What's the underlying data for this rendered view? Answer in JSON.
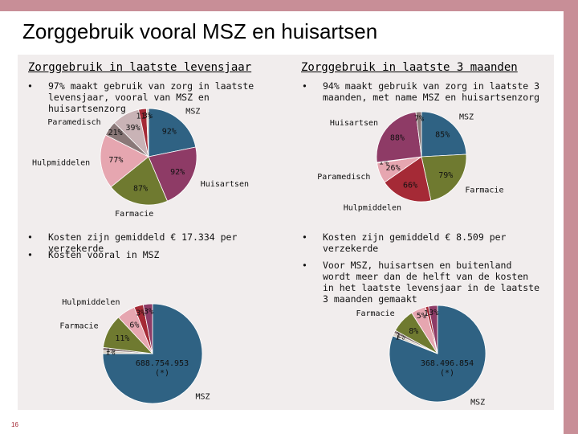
{
  "title": "Zorggebruik vooral MSZ en huisartsen",
  "page_number": "16",
  "columns": [
    {
      "heading": "Zorggebruik in laatste levensjaar",
      "bullets": [
        "97% maakt gebruik van zorg in laatste levensjaar, vooral van MSZ en huisartsenzorg"
      ],
      "cost_bullets": [
        "Kosten zijn gemiddeld € 17.334 per verzekerde",
        "Kosten vooral in MSZ"
      ]
    },
    {
      "heading": "Zorggebruik in laatste 3 maanden",
      "bullets": [
        "94% maakt gebruik van zorg in laatste 3 maanden, met name MSZ en huisartsenzorg"
      ],
      "cost_bullets": [
        "Kosten zijn gemiddeld € 8.509 per verzekerde",
        "Voor MSZ, huisartsen en buitenland wordt meer dan de helft van de kosten in het laatste levensjaar in de laatste 3 maanden gemaakt"
      ]
    }
  ],
  "chart_data": [
    {
      "type": "pie",
      "categories": [
        "MSZ",
        "Huisartsen",
        "Farmacie",
        "Hulpmiddelen",
        "Paramedisch",
        null,
        null,
        null
      ],
      "values": [
        92,
        92,
        87,
        77,
        21,
        39,
        11,
        3
      ],
      "value_labels": [
        "92%",
        "92%",
        "87%",
        "77%",
        "21%",
        "39%",
        "11%",
        "3%"
      ],
      "colors": [
        "#2f6283",
        "#8e3b66",
        "#6f7a30",
        "#e6a6b0",
        "#8a7878",
        "#c9b3b6",
        "#a52a36",
        "#d9d0c4"
      ]
    },
    {
      "type": "pie",
      "categories": [
        "MSZ",
        "Farmacie",
        "Hulpmiddelen",
        "Paramedisch",
        null,
        "Huisartsen",
        null
      ],
      "values": [
        85,
        79,
        66,
        26,
        1,
        88,
        7
      ],
      "value_labels": [
        "85%",
        "79%",
        "66%",
        "26%",
        "1%",
        "88%",
        "7%"
      ],
      "colors": [
        "#2f6283",
        "#6f7a30",
        "#a52a36",
        "#e6a6b0",
        "#d9d0c4",
        "#8e3b66",
        "#8a7878"
      ]
    },
    {
      "type": "pie",
      "categories": [
        "MSZ",
        null,
        null,
        "Farmacie",
        "Hulpmiddelen",
        null,
        null
      ],
      "values": [
        75,
        1,
        1,
        11,
        6,
        3,
        3
      ],
      "value_labels": [
        null,
        "1%",
        "1%",
        "11%",
        "6%",
        "3%",
        "3%"
      ],
      "colors": [
        "#2f6283",
        "#d9d0c4",
        "#8a7878",
        "#6f7a30",
        "#e6a6b0",
        "#a52a36",
        "#8e3b66"
      ],
      "annotation": [
        "688.754.953",
        "(*)"
      ]
    },
    {
      "type": "pie",
      "categories": [
        "MSZ",
        null,
        null,
        "Farmacie",
        null,
        null,
        null
      ],
      "values": [
        81,
        1,
        1,
        8,
        5,
        1,
        3
      ],
      "value_labels": [
        null,
        "1%",
        "1%",
        "8%",
        "5%",
        "1%",
        "3%"
      ],
      "colors": [
        "#2f6283",
        "#d9d0c4",
        "#8a7878",
        "#6f7a30",
        "#e6a6b0",
        "#a52a36",
        "#8e3b66"
      ],
      "annotation": [
        "368.496.854",
        "(*)"
      ]
    }
  ]
}
